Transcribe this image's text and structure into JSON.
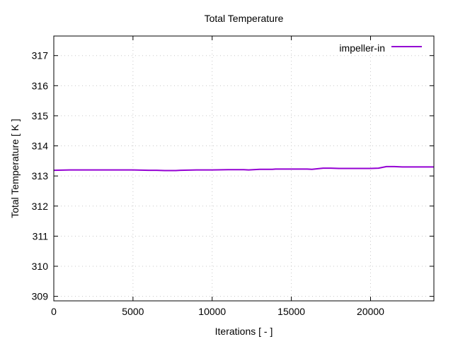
{
  "chart_data": {
    "type": "line",
    "title": "Total Temperature",
    "xlabel": "Iterations [ - ]",
    "ylabel": "Total Temperature [ K ]",
    "xlim": [
      0,
      24000
    ],
    "ylim": [
      308.85,
      317.65
    ],
    "xticks": [
      0,
      5000,
      10000,
      15000,
      20000
    ],
    "yticks": [
      309,
      310,
      311,
      312,
      313,
      314,
      315,
      316,
      317
    ],
    "grid": true,
    "legend_position": "top-right",
    "series": [
      {
        "name": "impeller-in",
        "color": "#9400d3",
        "x": [
          0,
          1000,
          2000,
          3000,
          4000,
          5000,
          6000,
          6500,
          7000,
          7700,
          8000,
          9000,
          9500,
          10000,
          11000,
          12000,
          12300,
          13000,
          13800,
          14000,
          15000,
          16000,
          16300,
          17000,
          17500,
          18000,
          19000,
          20000,
          20500,
          21000,
          21500,
          22000,
          23000,
          24000
        ],
        "y": [
          313.19,
          313.2,
          313.2,
          313.2,
          313.2,
          313.2,
          313.19,
          313.19,
          313.18,
          313.18,
          313.19,
          313.2,
          313.2,
          313.2,
          313.21,
          313.21,
          313.2,
          313.22,
          313.22,
          313.23,
          313.23,
          313.23,
          313.22,
          313.26,
          313.26,
          313.25,
          313.25,
          313.25,
          313.26,
          313.31,
          313.31,
          313.3,
          313.3,
          313.3
        ]
      }
    ]
  }
}
